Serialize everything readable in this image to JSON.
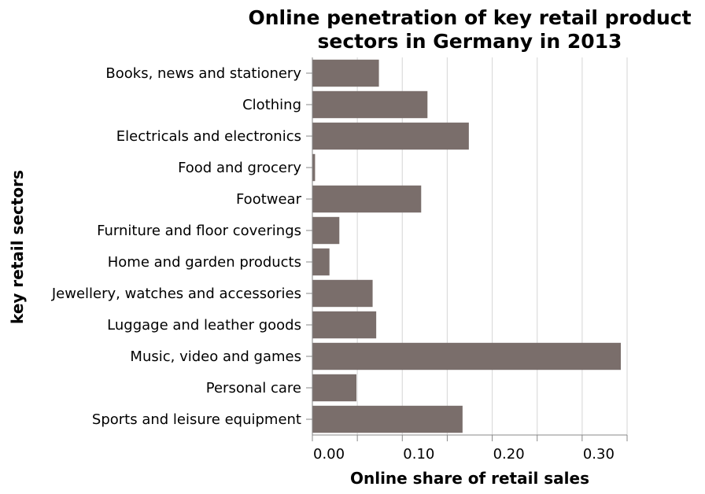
{
  "chart_data": {
    "type": "bar",
    "orientation": "horizontal",
    "title_lines": [
      "Online penetration of key retail product",
      "sectors in Germany in 2013"
    ],
    "xlabel": "Online share of retail sales",
    "ylabel": "key retail sectors",
    "categories": [
      "Books, news and stationery",
      "Clothing",
      "Electricals and electronics",
      "Food and grocery",
      "Footwear",
      "Furniture and floor coverings",
      "Home and garden products",
      "Jewellery, watches and accessories",
      "Luggage and leather goods",
      "Music, video and games",
      "Personal care",
      "Sports and leisure equipment"
    ],
    "values": [
      0.074,
      0.128,
      0.174,
      0.003,
      0.121,
      0.03,
      0.019,
      0.067,
      0.071,
      0.343,
      0.049,
      0.167
    ],
    "xlim": [
      0,
      0.35
    ],
    "xticks": [
      "0.00",
      "0.10",
      "0.20",
      "0.30"
    ],
    "xtick_values": [
      0,
      0.1,
      0.2,
      0.3
    ],
    "grid": true,
    "bar_color": "#7a6e6b"
  }
}
